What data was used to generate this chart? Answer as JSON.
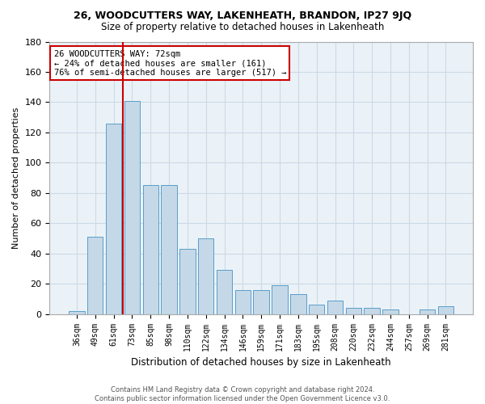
{
  "title1": "26, WOODCUTTERS WAY, LAKENHEATH, BRANDON, IP27 9JQ",
  "title2": "Size of property relative to detached houses in Lakenheath",
  "xlabel": "Distribution of detached houses by size in Lakenheath",
  "ylabel": "Number of detached properties",
  "categories": [
    "36sqm",
    "49sqm",
    "61sqm",
    "73sqm",
    "85sqm",
    "98sqm",
    "110sqm",
    "122sqm",
    "134sqm",
    "146sqm",
    "159sqm",
    "171sqm",
    "183sqm",
    "195sqm",
    "208sqm",
    "220sqm",
    "232sqm",
    "244sqm",
    "257sqm",
    "269sqm",
    "281sqm"
  ],
  "values": [
    2,
    51,
    126,
    141,
    85,
    85,
    43,
    50,
    29,
    16,
    16,
    19,
    13,
    6,
    9,
    4,
    4,
    3,
    0,
    3,
    5
  ],
  "bar_color": "#c5d8e8",
  "bar_edge_color": "#5a9ec8",
  "vline_x_index": 2.5,
  "vline_color": "#cc0000",
  "annotation_text": "26 WOODCUTTERS WAY: 72sqm\n← 24% of detached houses are smaller (161)\n76% of semi-detached houses are larger (517) →",
  "annotation_box_color": "#cc0000",
  "ylim": [
    0,
    180
  ],
  "yticks": [
    0,
    20,
    40,
    60,
    80,
    100,
    120,
    140,
    160,
    180
  ],
  "grid_color": "#ccd9e5",
  "bg_color": "#eaf2f8",
  "footer1": "Contains HM Land Registry data © Crown copyright and database right 2024.",
  "footer2": "Contains public sector information licensed under the Open Government Licence v3.0."
}
